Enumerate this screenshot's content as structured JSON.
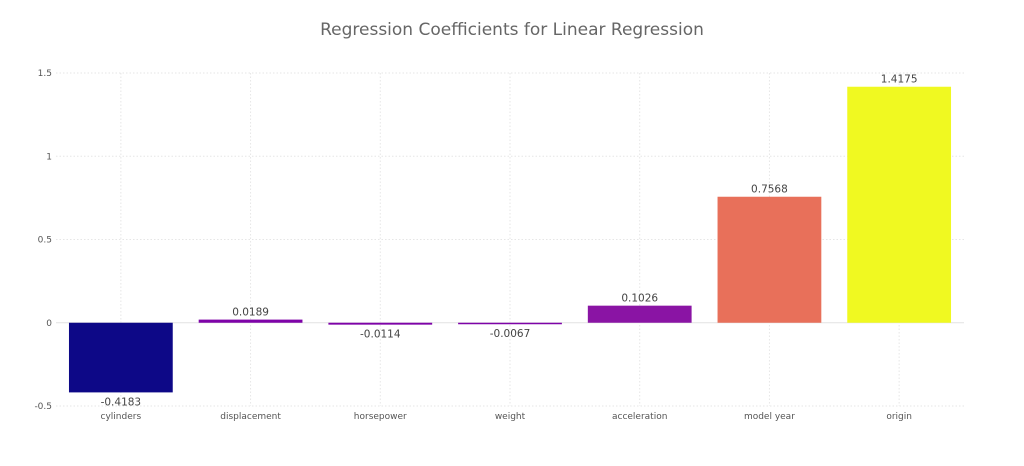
{
  "chart_data": {
    "type": "bar",
    "title": "Regression Coefficients for Linear Regression",
    "xlabel": "",
    "ylabel": "",
    "categories": [
      "cylinders",
      "displacement",
      "horsepower",
      "weight",
      "acceleration",
      "model year",
      "origin"
    ],
    "values": [
      -0.4183,
      0.0189,
      -0.0114,
      -0.0067,
      0.1026,
      0.7568,
      1.4175
    ],
    "value_labels": [
      "-0.4183",
      "0.0189",
      "-0.0114",
      "-0.0067",
      "0.1026",
      "0.7568",
      "1.4175"
    ],
    "colors": [
      "#0d0887",
      "#7e03a8",
      "#7e03a8",
      "#7e03a8",
      "#8a14a4",
      "#e8705a",
      "#f0f921"
    ],
    "ylim": [
      -0.5,
      1.5
    ],
    "yticks": [
      -0.5,
      0,
      0.5,
      1,
      1.5
    ],
    "ytick_labels": [
      "-0.5",
      "0",
      "0.5",
      "1",
      "1.5"
    ],
    "grid": true,
    "legend": "none"
  }
}
